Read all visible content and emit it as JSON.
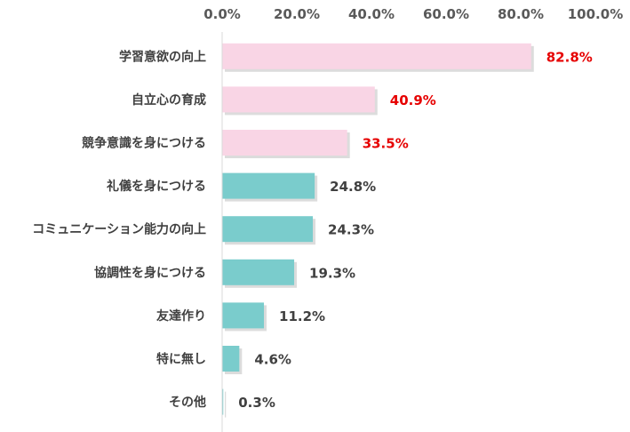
{
  "chart_data": {
    "type": "bar",
    "orientation": "horizontal",
    "categories": [
      "学習意欲の向上",
      "自立心の育成",
      "競争意識を身につける",
      "礼儀を身につける",
      "コミュニケーション能力の向上",
      "協調性を身につける",
      "友達作り",
      "特に無し",
      "その他"
    ],
    "values": [
      82.8,
      40.9,
      33.5,
      24.8,
      24.3,
      19.3,
      11.2,
      4.6,
      0.3
    ],
    "value_labels": [
      "82.8%",
      "40.9%",
      "33.5%",
      "24.8%",
      "24.3%",
      "19.3%",
      "11.2%",
      "4.6%",
      "0.3%"
    ],
    "x_ticks": [
      "0.0%",
      "20.0%",
      "40.0%",
      "60.0%",
      "80.0%",
      "100.0%"
    ],
    "xlim": [
      0,
      100
    ],
    "x_axis_position": "top",
    "grid": false,
    "highlight_count": 3,
    "colors": {
      "highlight_bar": "#F9D5E5",
      "normal_bar": "#7ACCCC",
      "highlight_label": "#E60000",
      "normal_label": "#404040",
      "tick_label": "#595959",
      "category_label": "#404040",
      "axis_line": "#D9D9D9"
    }
  }
}
